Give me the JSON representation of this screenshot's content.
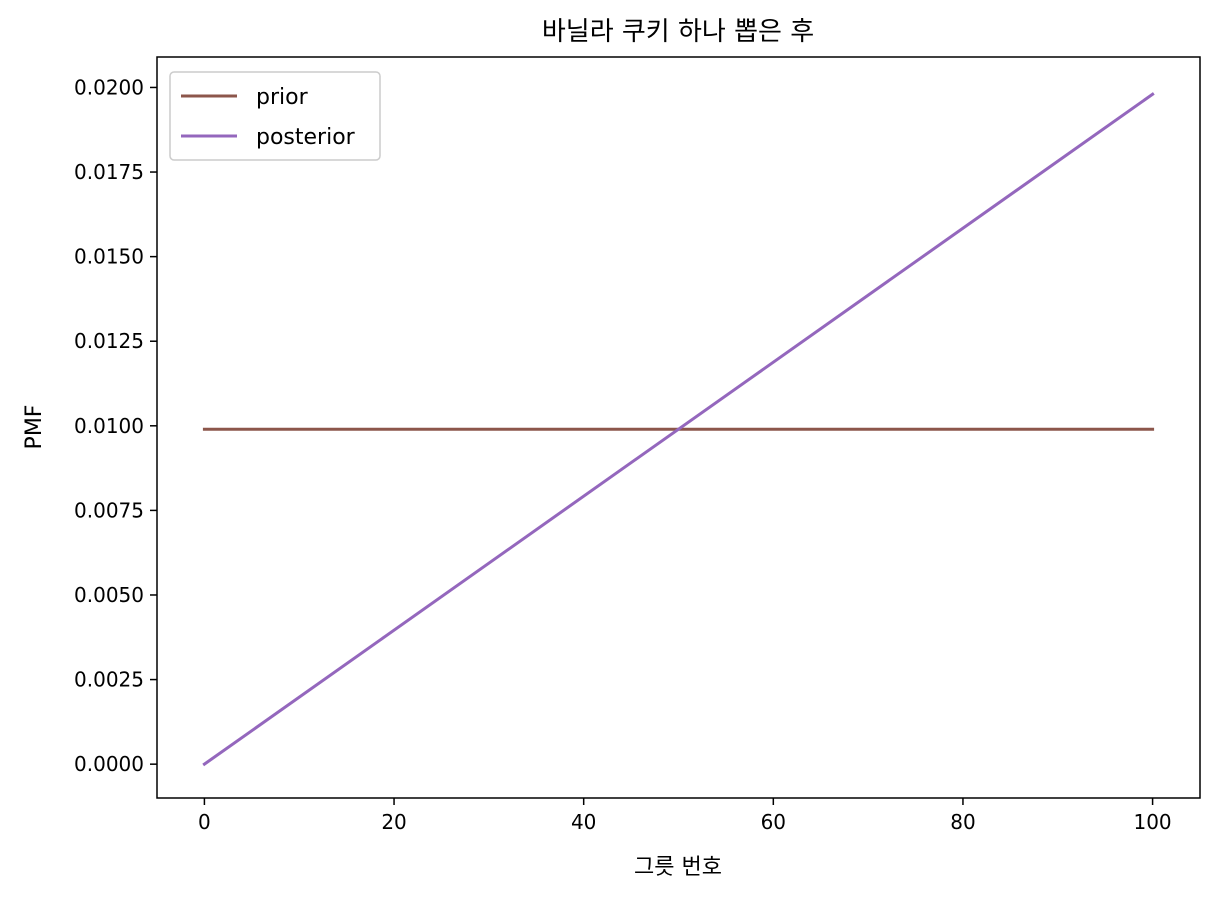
{
  "chart_data": {
    "type": "line",
    "title": "바닐라 쿠키 하나 뽑은 후",
    "xlabel": "그릇 번호",
    "ylabel": "PMF",
    "xlim": [
      -5,
      105
    ],
    "ylim": [
      -0.001,
      0.0209
    ],
    "xticks": [
      0,
      20,
      40,
      60,
      80,
      100
    ],
    "xtick_labels": [
      "0",
      "20",
      "40",
      "60",
      "80",
      "100"
    ],
    "yticks": [
      0.0,
      0.0025,
      0.005,
      0.0075,
      0.01,
      0.0125,
      0.015,
      0.0175,
      0.02
    ],
    "ytick_labels": [
      "0.0000",
      "0.0025",
      "0.0050",
      "0.0075",
      "0.0100",
      "0.0125",
      "0.0150",
      "0.0175",
      "0.0200"
    ],
    "grid": false,
    "legend_position": "top-left",
    "series": [
      {
        "name": "prior",
        "color": "#8c564b",
        "x": [
          0,
          100
        ],
        "y": [
          0.0099,
          0.0099
        ],
        "description": "uniform over bowls 0..100 (1/101 each)"
      },
      {
        "name": "posterior",
        "color": "#9467bd",
        "x": [
          0,
          100
        ],
        "y": [
          0.0,
          0.0198
        ],
        "description": "linear increase, proportional to bowl number"
      }
    ]
  }
}
